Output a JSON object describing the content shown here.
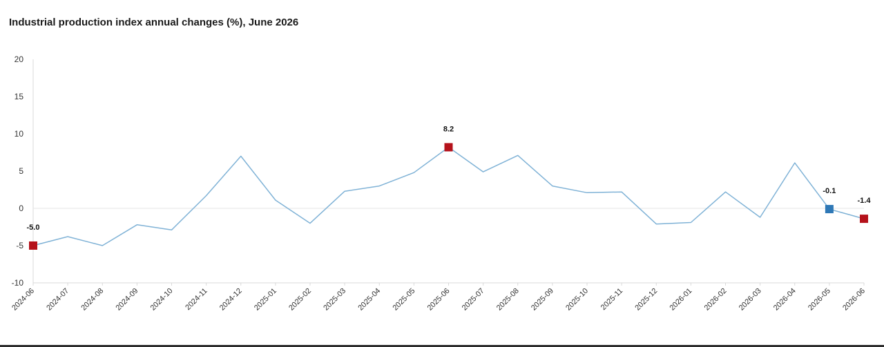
{
  "chart_data": {
    "type": "line",
    "title": "Industrial production index annual changes (%), June 2026",
    "xlabel": "",
    "ylabel": "",
    "ylim": [
      -10,
      20
    ],
    "yticks": [
      -10,
      -5,
      0,
      5,
      10,
      15,
      20
    ],
    "grid": false,
    "legend": "none",
    "categories": [
      "2024-06",
      "2024-07",
      "2024-08",
      "2024-09",
      "2024-10",
      "2024-11",
      "2024-12",
      "2025-01",
      "2025-02",
      "2025-03",
      "2025-04",
      "2025-05",
      "2025-06",
      "2025-07",
      "2025-08",
      "2025-09",
      "2025-10",
      "2025-11",
      "2025-12",
      "2026-01",
      "2026-02",
      "2026-03",
      "2026-04",
      "2026-05",
      "2026-06"
    ],
    "series": [
      {
        "values": [
          -5.0,
          -3.8,
          -5.0,
          -2.2,
          -2.9,
          1.7,
          7.0,
          1.1,
          -2.0,
          2.3,
          3.0,
          4.8,
          8.2,
          4.9,
          7.1,
          3.0,
          2.1,
          2.2,
          -2.1,
          -1.9,
          2.2,
          -1.2,
          6.1,
          -0.1,
          -1.4
        ]
      }
    ],
    "highlights": [
      {
        "category": "2024-06",
        "value": -5.0,
        "label": "-5.0",
        "color": "#b5121b"
      },
      {
        "category": "2025-06",
        "value": 8.2,
        "label": "8.2",
        "color": "#b5121b"
      },
      {
        "category": "2026-05",
        "value": -0.1,
        "label": "-0.1",
        "color": "#2e78b6"
      },
      {
        "category": "2026-06",
        "value": -1.4,
        "label": "-1.4",
        "color": "#b5121b"
      }
    ],
    "colors": {
      "line": "#7fb2d6",
      "axis": "#d9d9d9",
      "zero_line": "#e6e6e6",
      "tick_text": "#333333",
      "label_text": "#111111"
    }
  }
}
